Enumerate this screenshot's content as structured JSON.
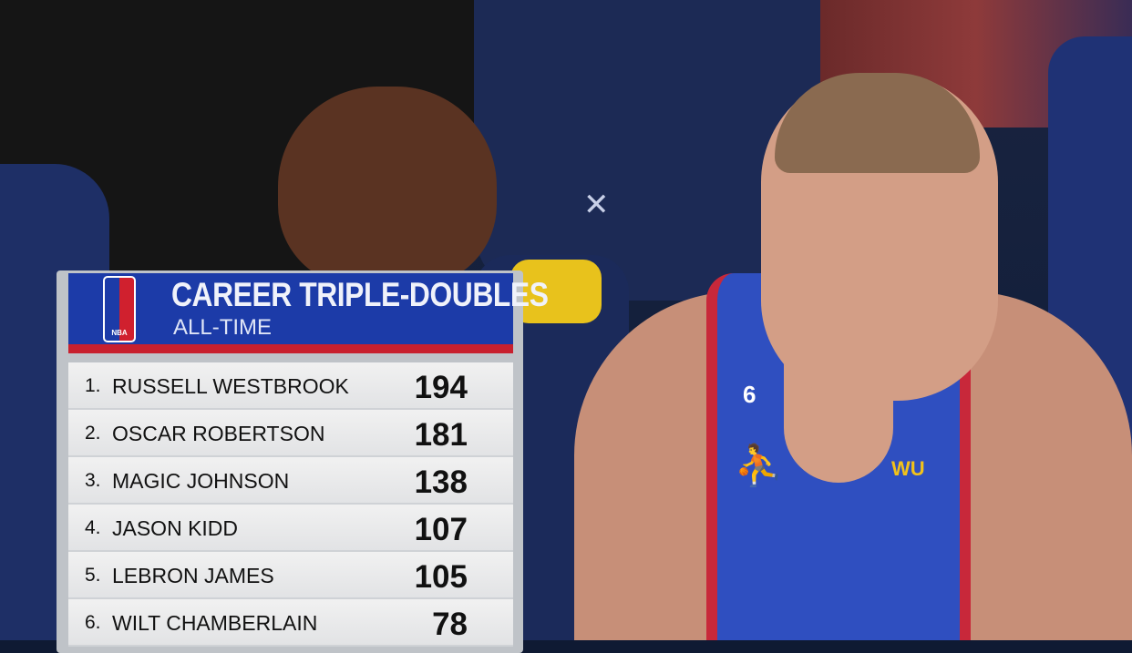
{
  "graphic": {
    "logo": "NBA",
    "title": "CAREER TRIPLE-DOUBLES",
    "subtitle": "ALL-TIME",
    "colors": {
      "header": "#1c3ba8",
      "stripe": "#c8202e"
    },
    "rows": [
      {
        "rank": "1.",
        "name": "RUSSELL WESTBROOK",
        "value": "194"
      },
      {
        "rank": "2.",
        "name": "OSCAR ROBERTSON",
        "value": "181"
      },
      {
        "rank": "3.",
        "name": "MAGIC JOHNSON",
        "value": "138"
      },
      {
        "rank": "4.",
        "name": "JASON KIDD",
        "value": "107"
      },
      {
        "rank": "5.",
        "name": "LEBRON JAMES",
        "value": "105"
      },
      {
        "rank": "6.",
        "name": "WILT CHAMBERLAIN",
        "value": "78"
      }
    ]
  },
  "jersey": {
    "number": "6",
    "sponsor": "WU"
  }
}
